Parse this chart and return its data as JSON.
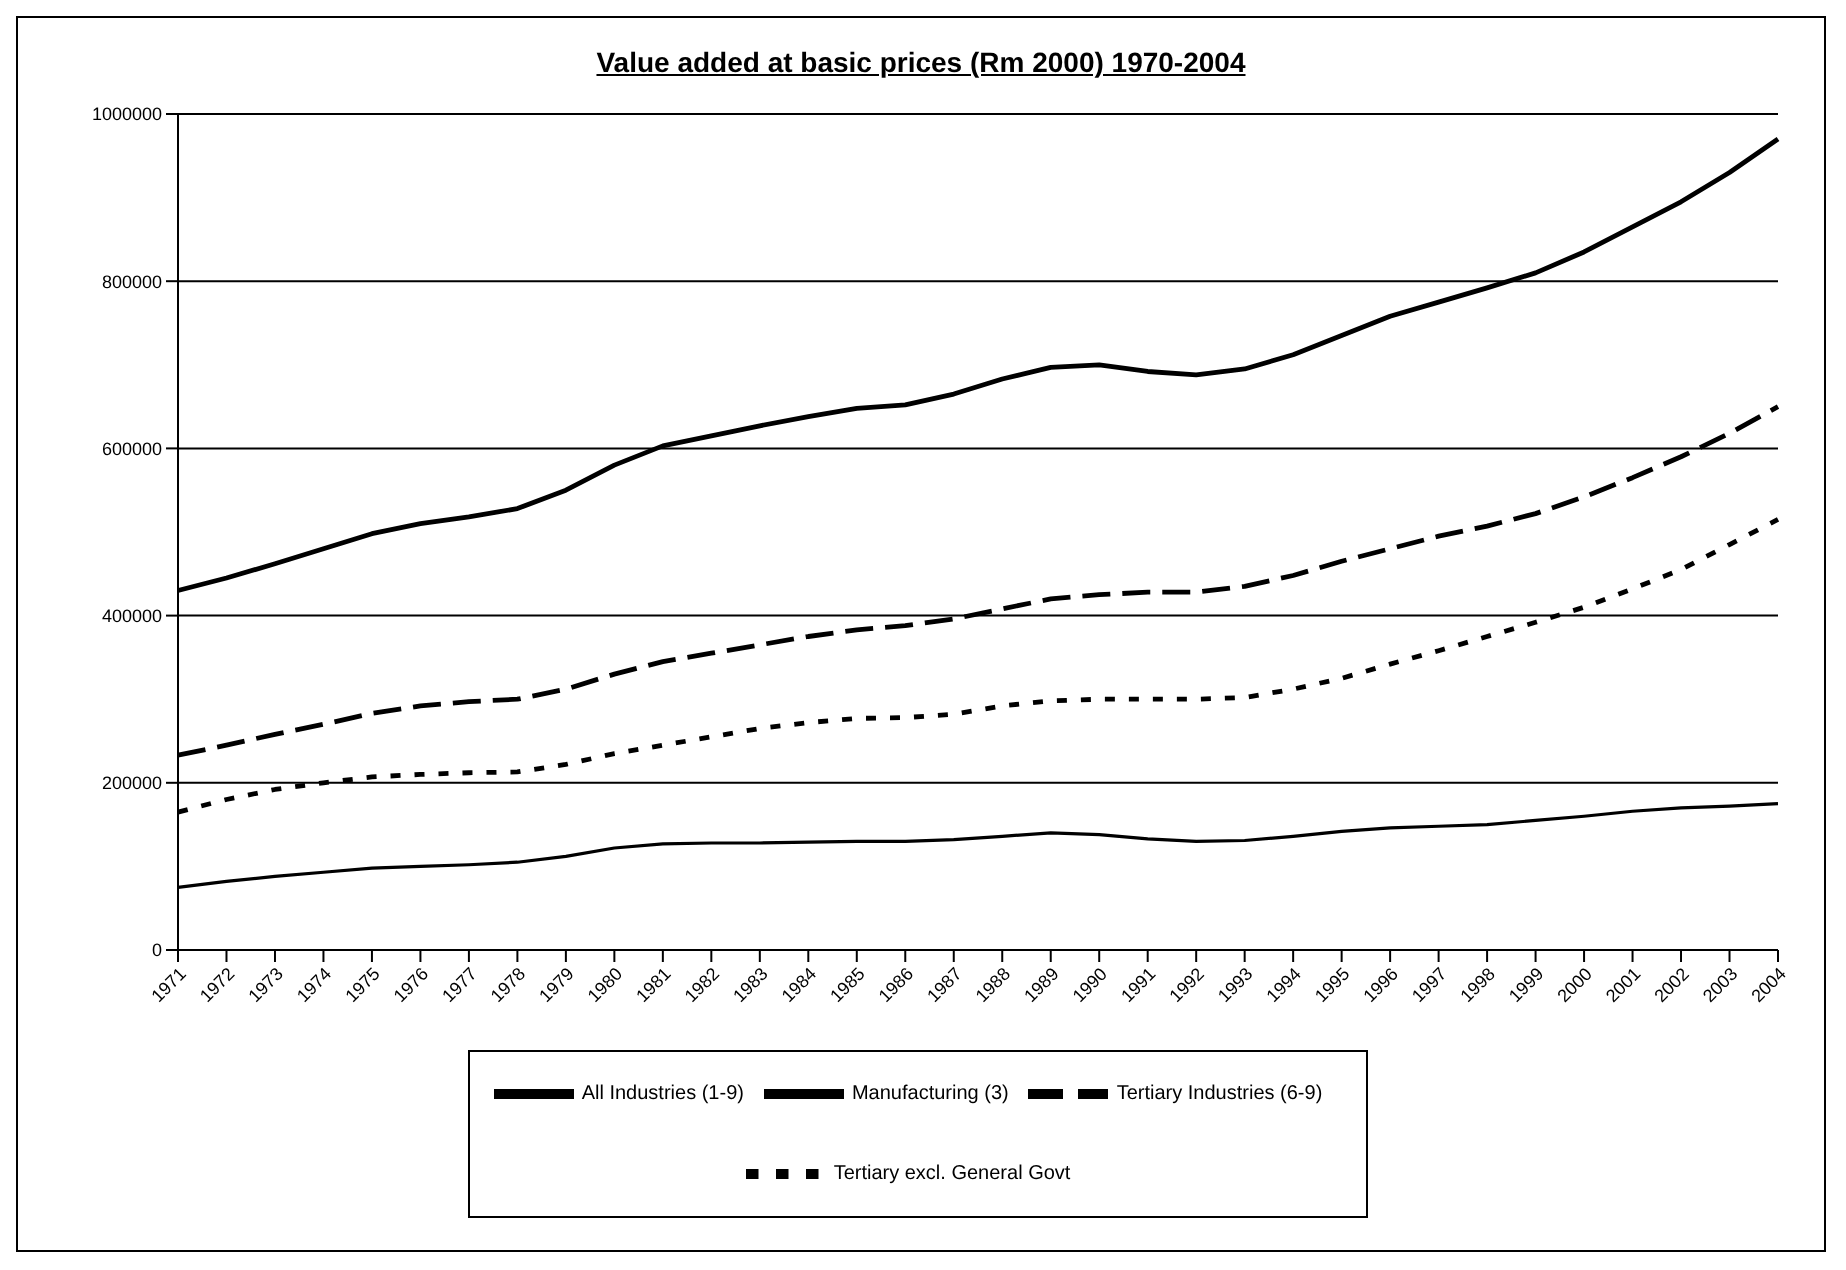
{
  "chart_data": {
    "type": "line",
    "title": "Value added at basic prices (Rm 2000) 1970-2004",
    "categories": [
      "1971",
      "1972",
      "1973",
      "1974",
      "1975",
      "1976",
      "1977",
      "1978",
      "1979",
      "1980",
      "1981",
      "1982",
      "1983",
      "1984",
      "1985",
      "1986",
      "1987",
      "1988",
      "1989",
      "1990",
      "1991",
      "1992",
      "1993",
      "1994",
      "1995",
      "1996",
      "1997",
      "1998",
      "1999",
      "2000",
      "2001",
      "2002",
      "2003",
      "2004"
    ],
    "series": [
      {
        "name": "All Industries (1-9)",
        "color": "#000000",
        "line_style": "solid",
        "values": [
          430000,
          445000,
          462000,
          480000,
          498000,
          510000,
          518000,
          528000,
          550000,
          580000,
          603000,
          615000,
          627000,
          638000,
          648000,
          652000,
          665000,
          683000,
          697000,
          700000,
          692000,
          688000,
          695000,
          712000,
          735000,
          758000,
          775000,
          792000,
          810000,
          835000,
          865000,
          895000,
          930000,
          970000
        ]
      },
      {
        "name": "Manufacturing (3)",
        "color": "#000000",
        "line_style": "solid",
        "values": [
          75000,
          82000,
          88000,
          93000,
          98000,
          100000,
          102000,
          105000,
          112000,
          122000,
          127000,
          128000,
          128000,
          129000,
          130000,
          130000,
          132000,
          136000,
          140000,
          138000,
          133000,
          130000,
          131000,
          136000,
          142000,
          146000,
          148000,
          150000,
          155000,
          160000,
          166000,
          170000,
          172000,
          175000
        ]
      },
      {
        "name": "Tertiary Industries (6-9)",
        "color": "#000000",
        "line_style": "dashed",
        "values": [
          233000,
          245000,
          258000,
          270000,
          283000,
          292000,
          297000,
          300000,
          312000,
          330000,
          345000,
          355000,
          365000,
          375000,
          383000,
          388000,
          396000,
          408000,
          420000,
          425000,
          428000,
          428000,
          435000,
          448000,
          465000,
          480000,
          495000,
          507000,
          522000,
          542000,
          565000,
          590000,
          618000,
          650000
        ]
      },
      {
        "name": "Tertiary excl. General Govt",
        "color": "#000000",
        "line_style": "dotted",
        "values": [
          165000,
          180000,
          192000,
          200000,
          207000,
          210000,
          212000,
          213000,
          222000,
          235000,
          245000,
          255000,
          265000,
          272000,
          277000,
          278000,
          282000,
          292000,
          298000,
          300000,
          300000,
          300000,
          302000,
          312000,
          325000,
          342000,
          358000,
          375000,
          392000,
          410000,
          432000,
          455000,
          485000,
          515000
        ]
      }
    ],
    "ylim": [
      0,
      1000000
    ],
    "yticks": [
      0,
      200000,
      400000,
      600000,
      800000,
      1000000
    ],
    "grid": "y",
    "legend": "bottom",
    "marker": "none"
  }
}
